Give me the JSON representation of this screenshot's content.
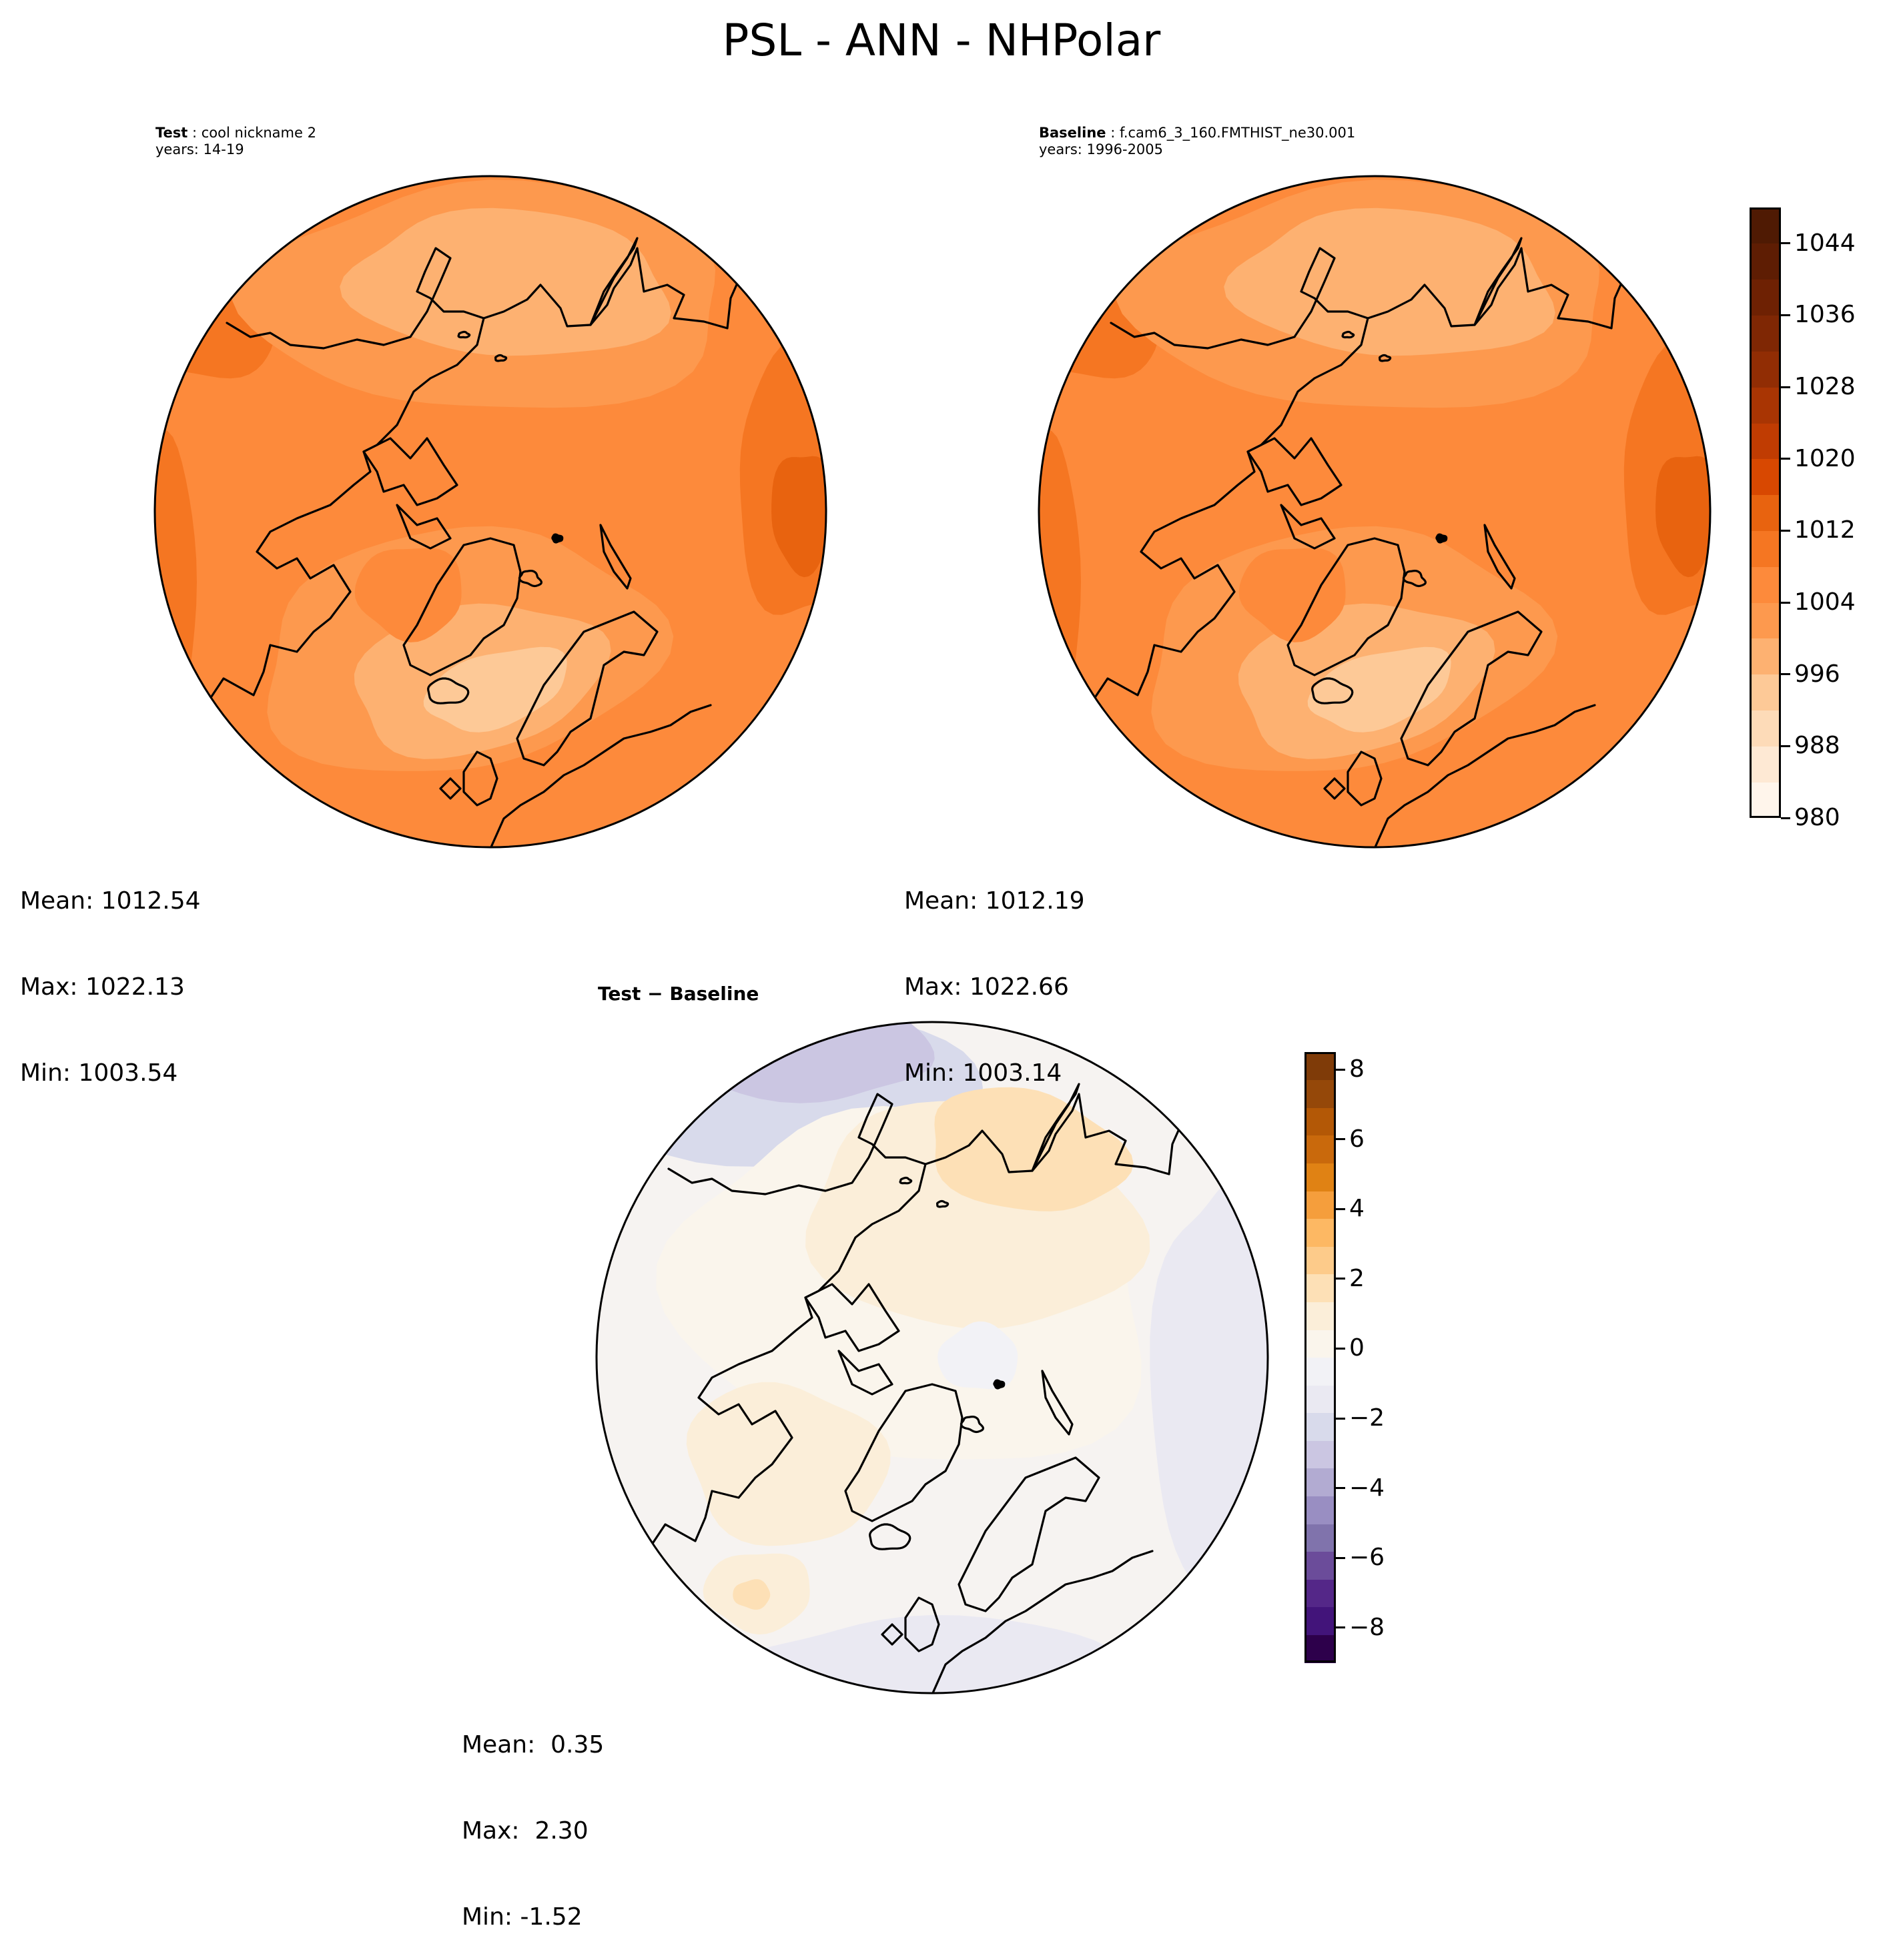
{
  "figure": {
    "title": "PSL - ANN - NHPolar"
  },
  "colors": {
    "orange_ramp": [
      "#fff5eb",
      "#fee9d4",
      "#fddbb8",
      "#fdc997",
      "#fdb171",
      "#fd994e",
      "#fd8a3b",
      "#f57622",
      "#e8630f",
      "#d84801",
      "#c03c02",
      "#a93503",
      "#912d04",
      "#7f2704"
    ],
    "diff_neg": [
      "#2d004b",
      "#42147a",
      "#542788",
      "#6b4c9a",
      "#8073ac",
      "#998ec2",
      "#b2abd2",
      "#cbc6e2",
      "#d8daeb",
      "#eae9f2",
      "#f2f2f6"
    ],
    "diff_pos": [
      "#faf5ec",
      "#fbeed9",
      "#fde0b6",
      "#fdcb8a",
      "#fdb863",
      "#f59e3c",
      "#e08214",
      "#c9690c",
      "#b35806",
      "#954809",
      "#7f3b08"
    ],
    "coast": "#000000"
  },
  "chart_data": [
    {
      "type": "heatmap",
      "panel": "test",
      "label": "Test",
      "case_name": "cool nickname 2",
      "years_text": "years: 14-19",
      "stats": {
        "mean": "Mean: 1012.54",
        "max": "Max: 1022.13",
        "min": "Min: 1003.54"
      }
    },
    {
      "type": "heatmap",
      "panel": "baseline",
      "label": "Baseline",
      "case_name": "f.cam6_3_160.FMTHIST_ne30.001",
      "years_text": "years: 1996-2005",
      "stats": {
        "mean": "Mean: 1012.19",
        "max": "Max: 1022.66",
        "min": "Min: 1003.14"
      },
      "colorbar": {
        "range": [
          980,
          1048
        ],
        "ticks": [
          980,
          988,
          996,
          1004,
          1012,
          1020,
          1028,
          1036,
          1044
        ]
      }
    },
    {
      "type": "heatmap",
      "panel": "difference",
      "label": "Test − Baseline",
      "stats": {
        "mean": "Mean:  0.35",
        "max": "Max:  2.30",
        "min": "Min: -1.52"
      },
      "colorbar": {
        "range": [
          -9,
          8.5
        ],
        "ticks": [
          "8",
          "6",
          "4",
          "2",
          "0",
          "−2",
          "−4",
          "−6",
          "−8"
        ],
        "tick_values": [
          8,
          6,
          4,
          2,
          0,
          -2,
          -4,
          -6,
          -8
        ]
      }
    }
  ]
}
